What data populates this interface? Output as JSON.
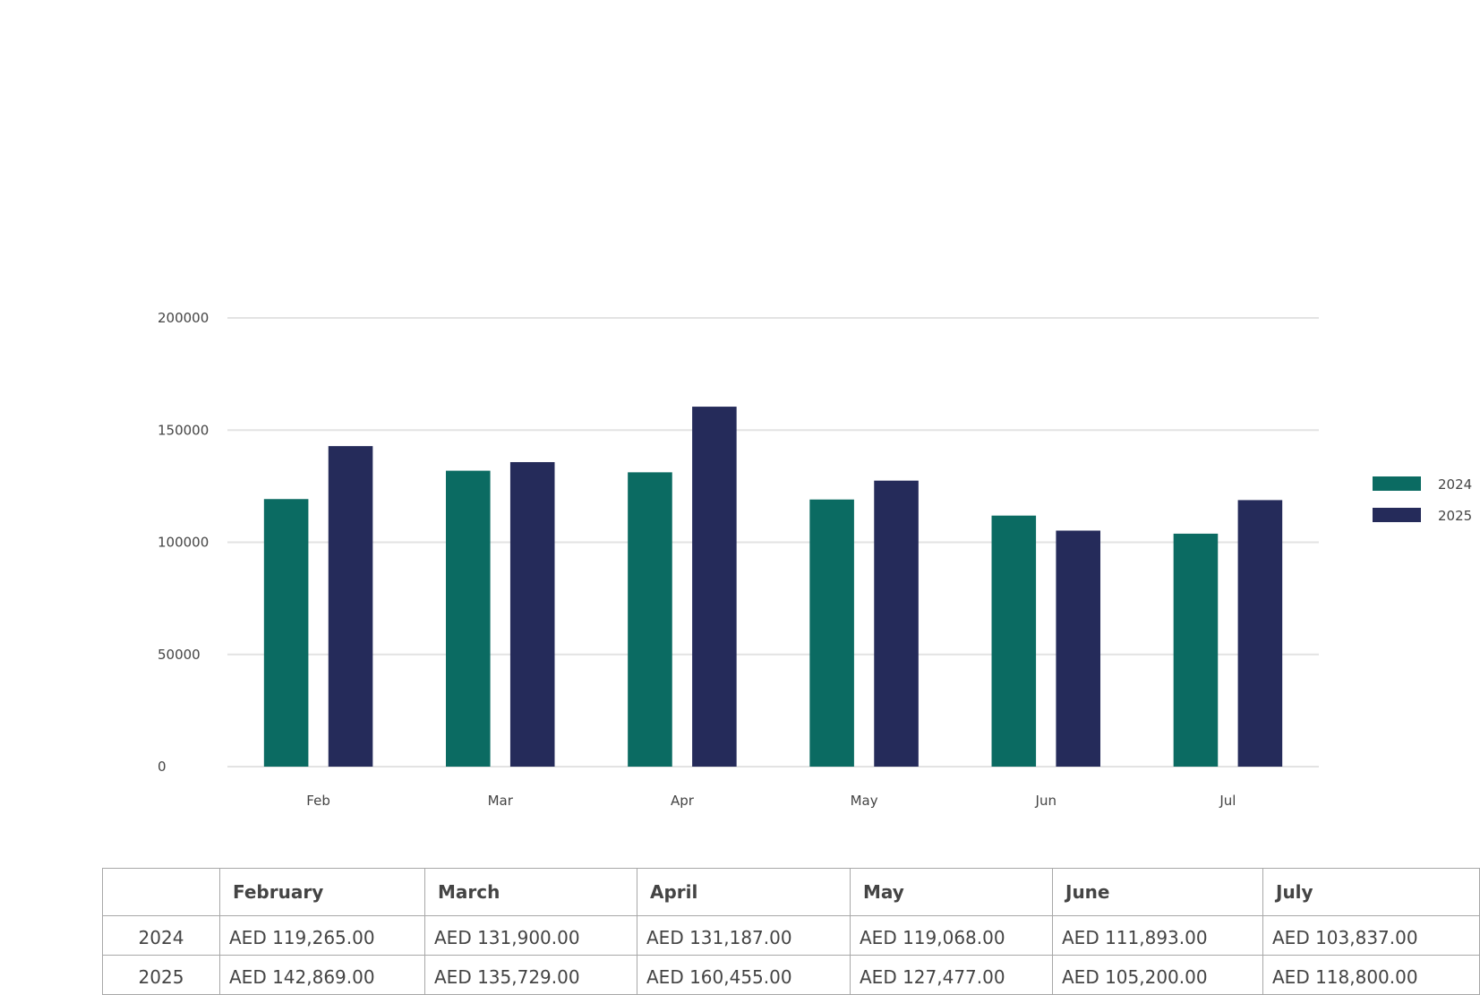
{
  "chart_data": {
    "type": "bar",
    "categories": [
      "Feb",
      "Mar",
      "Apr",
      "May",
      "Jun",
      "Jul"
    ],
    "series": [
      {
        "name": "2024",
        "color": "#0b6b62",
        "values": [
          119265,
          131900,
          131187,
          119068,
          111893,
          103837
        ]
      },
      {
        "name": "2025",
        "color": "#252b5a",
        "values": [
          142869,
          135729,
          160455,
          127477,
          105200,
          118800
        ]
      }
    ],
    "ylim": [
      0,
      200000
    ],
    "yticks": [
      0,
      50000,
      100000,
      150000,
      200000
    ],
    "grid": true,
    "legend": "right"
  },
  "table": {
    "headers": [
      "",
      "February",
      "March",
      "April",
      "May",
      "June",
      "July"
    ],
    "rows": [
      [
        "2024",
        "AED 119,265.00",
        "AED 131,900.00",
        "AED 131,187.00",
        "AED 119,068.00",
        "AED 111,893.00",
        "AED 103,837.00"
      ],
      [
        "2025",
        "AED 142,869.00",
        "AED 135,729.00",
        "AED 160,455.00",
        "AED 127,477.00",
        "AED 105,200.00",
        "AED 118,800.00"
      ]
    ]
  }
}
